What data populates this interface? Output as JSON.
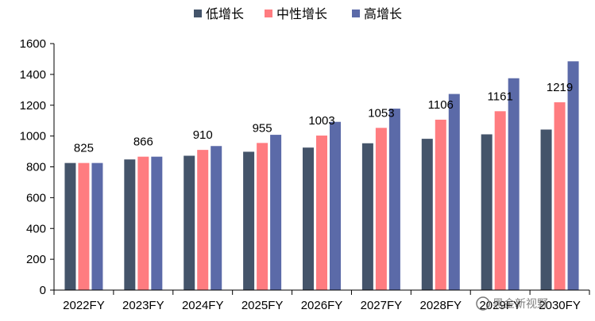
{
  "chart_data": {
    "type": "bar",
    "categories": [
      "2022FY",
      "2023FY",
      "2024FY",
      "2025FY",
      "2026FY",
      "2027FY",
      "2028FY",
      "2029FY",
      "2030FY"
    ],
    "series": [
      {
        "name": "低增长",
        "color": "#44546a",
        "values": [
          825,
          848,
          872,
          898,
          925,
          953,
          982,
          1011,
          1042
        ]
      },
      {
        "name": "中性增长",
        "color": "#ff7c80",
        "values": [
          825,
          866,
          910,
          955,
          1003,
          1053,
          1106,
          1161,
          1219
        ]
      },
      {
        "name": "高增长",
        "color": "#5b6aa8",
        "values": [
          825,
          866,
          935,
          1008,
          1092,
          1178,
          1273,
          1375,
          1485
        ]
      }
    ],
    "data_labels": [
      "825",
      "866",
      "910",
      "955",
      "1003",
      "1053",
      "1106",
      "1161",
      "1219"
    ],
    "yticks": [
      "0",
      "200",
      "400",
      "600",
      "800",
      "1000",
      "1200",
      "1400",
      "1600"
    ],
    "ylim": [
      0,
      1600
    ],
    "grid": false,
    "legend_position": "top",
    "title": "",
    "xlabel": "",
    "ylabel": ""
  },
  "watermark": "黑金新视野"
}
